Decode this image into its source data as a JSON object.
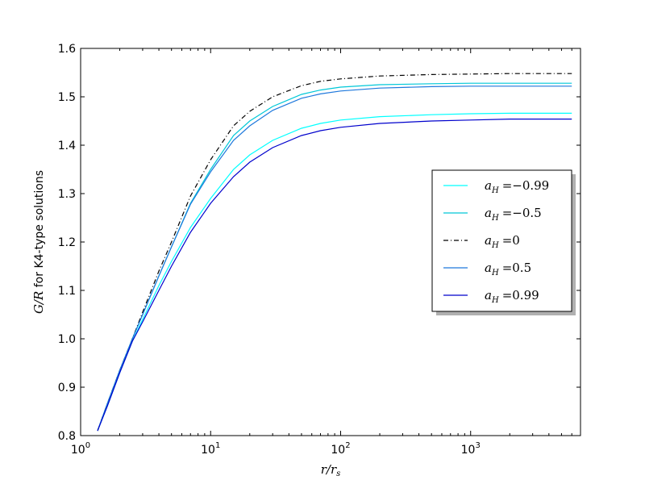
{
  "chart_data": {
    "type": "line",
    "xscale": "log",
    "xlim": [
      1,
      7000
    ],
    "ylim": [
      0.8,
      1.6
    ],
    "xlabel": "r/r_s",
    "ylabel": "G/R for K4-type solutions",
    "ylabel_math": "G/R",
    "ylabel_text": "for K4-type solutions",
    "xlabel_math_num": "r",
    "xlabel_math_den": "r",
    "xlabel_math_den_sub": "s",
    "yticks": [
      "0.8",
      "0.9",
      "1.0",
      "1.1",
      "1.2",
      "1.3",
      "1.4",
      "1.5",
      "1.6"
    ],
    "yticks_values": [
      0.8,
      0.9,
      1.0,
      1.1,
      1.2,
      1.3,
      1.4,
      1.5,
      1.6
    ],
    "xticks": [
      {
        "value": 1,
        "base": "10",
        "exp": "0"
      },
      {
        "value": 10,
        "base": "10",
        "exp": "1"
      },
      {
        "value": 100,
        "base": "10",
        "exp": "2"
      },
      {
        "value": 1000,
        "base": "10",
        "exp": "3"
      }
    ],
    "legend_position": "center-right",
    "grid": false,
    "series": [
      {
        "name": "a_H = −0.99",
        "label_sub": "H",
        "label_value": "=−0.99",
        "color": "#00ffff",
        "dash": "solid",
        "x": [
          1.35,
          1.6,
          2.0,
          2.5,
          3.0,
          4.0,
          5.0,
          7.0,
          10,
          15,
          20,
          30,
          50,
          70,
          100,
          200,
          500,
          1000,
          2000,
          6000
        ],
        "y": [
          0.81,
          0.86,
          0.93,
          0.995,
          1.04,
          1.11,
          1.16,
          1.23,
          1.29,
          1.35,
          1.38,
          1.41,
          1.435,
          1.445,
          1.452,
          1.459,
          1.463,
          1.465,
          1.466,
          1.466
        ]
      },
      {
        "name": "a_H = −0.5",
        "label_sub": "H",
        "label_value": "=−0.5",
        "color": "#00c8d8",
        "dash": "solid",
        "x": [
          1.35,
          1.6,
          2.0,
          2.5,
          3.0,
          4.0,
          5.0,
          7.0,
          10,
          15,
          20,
          30,
          50,
          70,
          100,
          200,
          500,
          1000,
          2000,
          6000
        ],
        "y": [
          0.81,
          0.865,
          0.935,
          1.0,
          1.05,
          1.13,
          1.19,
          1.28,
          1.35,
          1.42,
          1.45,
          1.48,
          1.505,
          1.514,
          1.52,
          1.525,
          1.527,
          1.528,
          1.528,
          1.528
        ]
      },
      {
        "name": "a_H = 0",
        "label_sub": "H",
        "label_value": "=0",
        "color": "#000000",
        "dash": "dashdot",
        "x": [
          1.35,
          1.6,
          2.0,
          2.5,
          3.0,
          4.0,
          5.0,
          7.0,
          10,
          15,
          20,
          30,
          50,
          70,
          100,
          200,
          500,
          1000,
          2000,
          6000
        ],
        "y": [
          0.81,
          0.865,
          0.935,
          1.0,
          1.055,
          1.14,
          1.2,
          1.295,
          1.37,
          1.44,
          1.47,
          1.5,
          1.523,
          1.532,
          1.537,
          1.543,
          1.546,
          1.547,
          1.548,
          1.548
        ]
      },
      {
        "name": "a_H = 0.5",
        "label_sub": "H",
        "label_value": "=0.5",
        "color": "#1e78dc",
        "dash": "solid",
        "x": [
          1.35,
          1.6,
          2.0,
          2.5,
          3.0,
          4.0,
          5.0,
          7.0,
          10,
          15,
          20,
          30,
          50,
          70,
          100,
          200,
          500,
          1000,
          2000,
          6000
        ],
        "y": [
          0.81,
          0.865,
          0.935,
          1.0,
          1.05,
          1.13,
          1.19,
          1.278,
          1.345,
          1.41,
          1.44,
          1.472,
          1.497,
          1.506,
          1.512,
          1.518,
          1.521,
          1.522,
          1.522,
          1.522
        ]
      },
      {
        "name": "a_H = 0.99",
        "label_sub": "H",
        "label_value": "=0.99",
        "color": "#0000cc",
        "dash": "solid",
        "x": [
          1.35,
          1.6,
          2.0,
          2.5,
          3.0,
          4.0,
          5.0,
          7.0,
          10,
          15,
          20,
          30,
          50,
          70,
          100,
          200,
          500,
          1000,
          2000,
          6000
        ],
        "y": [
          0.81,
          0.86,
          0.93,
          0.995,
          1.035,
          1.1,
          1.15,
          1.22,
          1.28,
          1.335,
          1.365,
          1.395,
          1.42,
          1.43,
          1.437,
          1.445,
          1.45,
          1.452,
          1.454,
          1.454
        ]
      }
    ]
  }
}
